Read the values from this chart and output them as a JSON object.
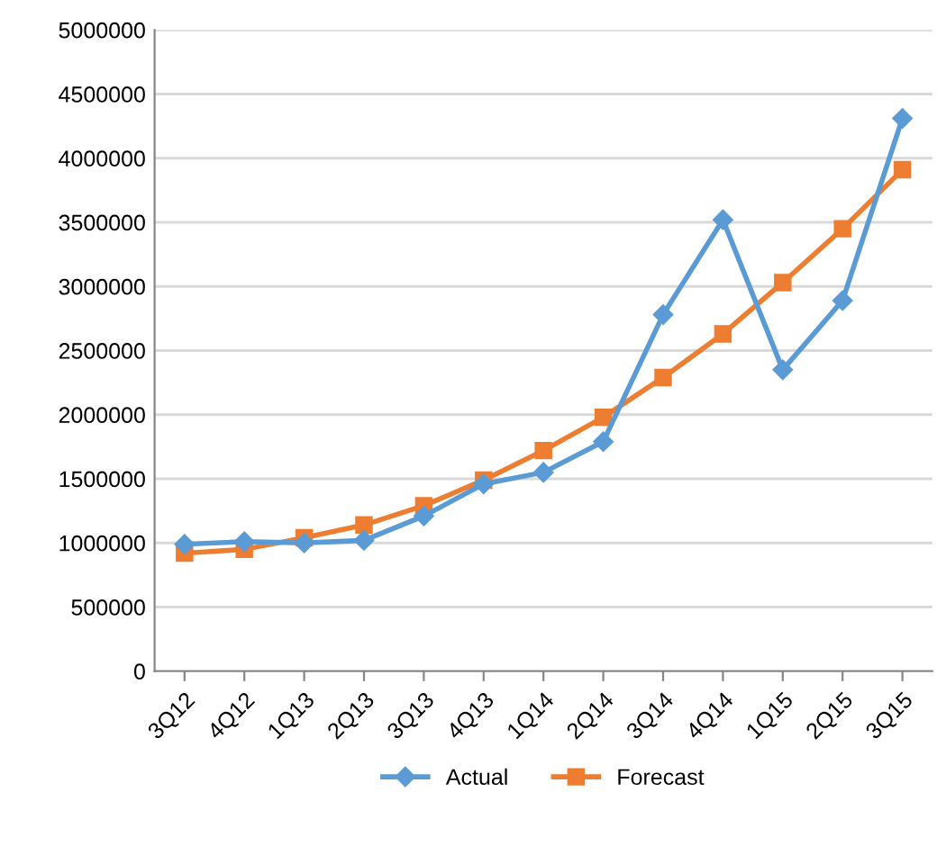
{
  "chart_data": {
    "type": "line",
    "categories": [
      "3Q12",
      "4Q12",
      "1Q13",
      "2Q13",
      "3Q13",
      "4Q13",
      "1Q14",
      "2Q14",
      "3Q14",
      "4Q14",
      "1Q15",
      "2Q15",
      "3Q15"
    ],
    "series": [
      {
        "name": "Actual",
        "color": "#5b9bd5",
        "marker": "diamond",
        "values": [
          990000,
          1010000,
          1000000,
          1020000,
          1210000,
          1460000,
          1550000,
          1790000,
          2780000,
          3520000,
          2350000,
          2890000,
          4310000
        ]
      },
      {
        "name": "Forecast",
        "color": "#ed7d31",
        "marker": "square",
        "values": [
          920000,
          950000,
          1040000,
          1140000,
          1290000,
          1490000,
          1720000,
          1980000,
          2290000,
          2630000,
          3030000,
          3450000,
          3910000
        ]
      }
    ],
    "ylim": [
      0,
      5000000
    ],
    "yticks": [
      0,
      500000,
      1000000,
      1500000,
      2000000,
      2500000,
      3000000,
      3500000,
      4000000,
      4500000,
      5000000
    ],
    "grid": "y",
    "legend": "bottom"
  }
}
